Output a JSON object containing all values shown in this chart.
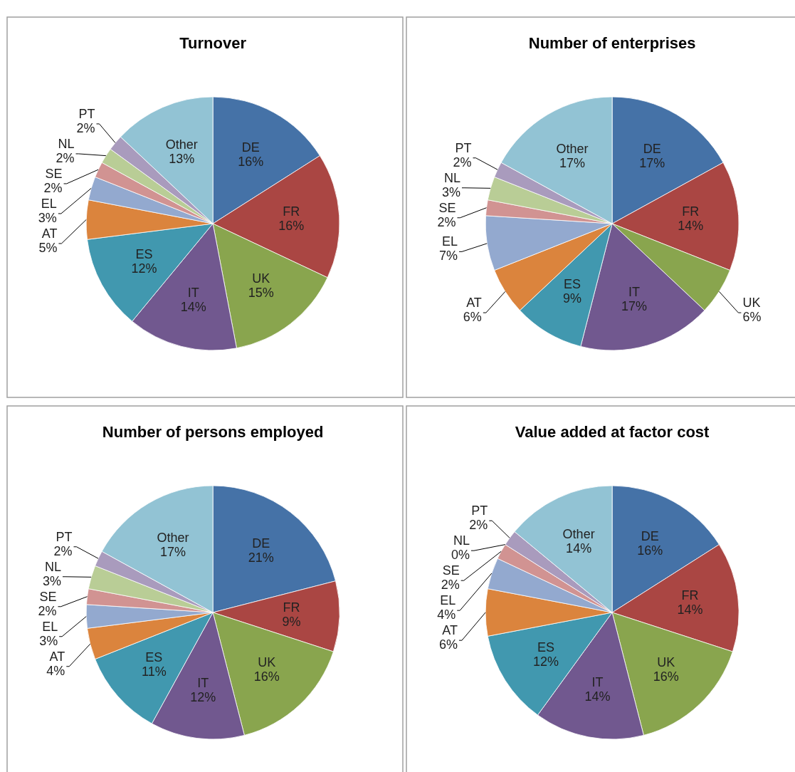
{
  "chart_data": [
    {
      "type": "pie",
      "title": "Turnover",
      "categories": [
        "DE",
        "FR",
        "UK",
        "IT",
        "ES",
        "AT",
        "EL",
        "SE",
        "NL",
        "PT",
        "Other"
      ],
      "values": [
        16,
        16,
        15,
        14,
        12,
        5,
        3,
        2,
        2,
        2,
        13
      ],
      "value_labels": [
        "16%",
        "16%",
        "15%",
        "14%",
        "12%",
        "5%",
        "3%",
        "2%",
        "2%",
        "2%",
        "13%"
      ],
      "colors": [
        "#4572a7",
        "#aa4643",
        "#89a54e",
        "#71588f",
        "#4198af",
        "#db843d",
        "#93a9cf",
        "#d19392",
        "#b9cd96",
        "#a99bbd",
        "#92c3d4"
      ]
    },
    {
      "type": "pie",
      "title": "Number of enterprises",
      "categories": [
        "DE",
        "FR",
        "UK",
        "IT",
        "ES",
        "AT",
        "EL",
        "SE",
        "NL",
        "PT",
        "Other"
      ],
      "values": [
        17,
        14,
        6,
        17,
        9,
        6,
        7,
        2,
        3,
        2,
        17
      ],
      "value_labels": [
        "17%",
        "14%",
        "6%",
        "17%",
        "9%",
        "6%",
        "7%",
        "2%",
        "3%",
        "2%",
        "17%"
      ],
      "colors": [
        "#4572a7",
        "#aa4643",
        "#89a54e",
        "#71588f",
        "#4198af",
        "#db843d",
        "#93a9cf",
        "#d19392",
        "#b9cd96",
        "#a99bbd",
        "#92c3d4"
      ]
    },
    {
      "type": "pie",
      "title": "Number of persons employed",
      "categories": [
        "DE",
        "FR",
        "UK",
        "IT",
        "ES",
        "AT",
        "EL",
        "SE",
        "NL",
        "PT",
        "Other"
      ],
      "values": [
        21,
        9,
        16,
        12,
        11,
        4,
        3,
        2,
        3,
        2,
        17
      ],
      "value_labels": [
        "21%",
        "9%",
        "16%",
        "12%",
        "11%",
        "4%",
        "3%",
        "2%",
        "3%",
        "2%",
        "17%"
      ],
      "colors": [
        "#4572a7",
        "#aa4643",
        "#89a54e",
        "#71588f",
        "#4198af",
        "#db843d",
        "#93a9cf",
        "#d19392",
        "#b9cd96",
        "#a99bbd",
        "#92c3d4"
      ]
    },
    {
      "type": "pie",
      "title": "Value added at factor cost",
      "categories": [
        "DE",
        "FR",
        "UK",
        "IT",
        "ES",
        "AT",
        "EL",
        "SE",
        "NL",
        "PT",
        "Other"
      ],
      "values": [
        16,
        14,
        16,
        14,
        12,
        6,
        4,
        2,
        0,
        2,
        14
      ],
      "value_labels": [
        "16%",
        "14%",
        "16%",
        "14%",
        "12%",
        "6%",
        "4%",
        "2%",
        "0%",
        "2%",
        "14%"
      ],
      "colors": [
        "#4572a7",
        "#aa4643",
        "#89a54e",
        "#71588f",
        "#4198af",
        "#db843d",
        "#93a9cf",
        "#d19392",
        "#b9cd96",
        "#a99bbd",
        "#92c3d4"
      ]
    }
  ]
}
